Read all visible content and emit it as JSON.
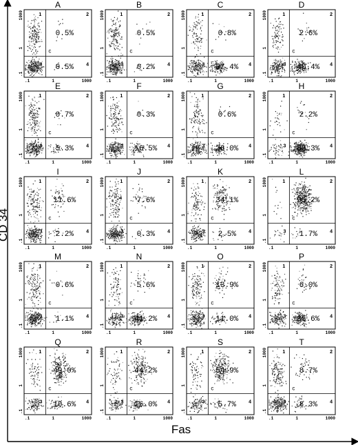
{
  "chart_data": {
    "type": "scatter",
    "layout": "5x4 grid of flow-cytometry dot plots",
    "xlabel": "Fas",
    "ylabel": "CD 34",
    "x_tick_labels": [
      ".1",
      "1",
      "1000"
    ],
    "y_tick_labels": [
      ".1",
      "1",
      "1000"
    ],
    "quadrant_labels": [
      "1",
      "2",
      "3",
      "4"
    ],
    "gate_label": "c",
    "x_scale": "log",
    "y_scale": "log",
    "panels": [
      {
        "letter": "A",
        "upper_right": "0.5%",
        "lower_right": "0.5%",
        "q2": 0.5,
        "q4": 0.5
      },
      {
        "letter": "B",
        "upper_right": "0.5%",
        "lower_right": "0.2%",
        "q2": 0.5,
        "q4": 0.2
      },
      {
        "letter": "C",
        "upper_right": "0.8%",
        "lower_right": "37.4%",
        "q2": 0.8,
        "q4": 37.4
      },
      {
        "letter": "D",
        "upper_right": "2.6%",
        "lower_right": "40.4%",
        "q2": 2.6,
        "q4": 40.4
      },
      {
        "letter": "E",
        "upper_right": "0.7%",
        "lower_right": "5.3%",
        "q2": 0.7,
        "q4": 5.3
      },
      {
        "letter": "F",
        "upper_right": "0.3%",
        "lower_right": "16.5%",
        "q2": 0.3,
        "q4": 16.5
      },
      {
        "letter": "G",
        "upper_right": "0.6%",
        "lower_right": "26.0%",
        "q2": 0.6,
        "q4": 26.0
      },
      {
        "letter": "H",
        "upper_right": "2.2%",
        "lower_right": "83.3%",
        "q2": 2.2,
        "q4": 83.3
      },
      {
        "letter": "I",
        "upper_right": "11.6%",
        "lower_right": "2.2%",
        "q2": 11.6,
        "q4": 2.2
      },
      {
        "letter": "J",
        "upper_right": "7.6%",
        "lower_right": "0.3%",
        "q2": 7.6,
        "q4": 0.3
      },
      {
        "letter": "K",
        "upper_right": "34.1%",
        "lower_right": "2.5%",
        "q2": 34.1,
        "q4": 2.5
      },
      {
        "letter": "L",
        "upper_right": "95.2%",
        "lower_right": "1.7%",
        "q2": 95.2,
        "q4": 1.7
      },
      {
        "letter": "M",
        "upper_right": "0.6%",
        "lower_right": "1.1%",
        "q2": 0.6,
        "q4": 1.1
      },
      {
        "letter": "N",
        "upper_right": "5.6%",
        "lower_right": "41.2%",
        "q2": 5.6,
        "q4": 41.2
      },
      {
        "letter": "O",
        "upper_right": "13.9%",
        "lower_right": "11.0%",
        "q2": 13.9,
        "q4": 11.0
      },
      {
        "letter": "P",
        "upper_right": "6.0%",
        "lower_right": "35.6%",
        "q2": 6.0,
        "q4": 35.6
      },
      {
        "letter": "Q",
        "upper_right": "49.0%",
        "lower_right": "10.6%",
        "q2": 49.0,
        "q4": 10.6
      },
      {
        "letter": "R",
        "upper_right": "44.2%",
        "lower_right": "16.0%",
        "q2": 44.2,
        "q4": 16.0
      },
      {
        "letter": "S",
        "upper_right": "54.9%",
        "lower_right": "5.7%",
        "q2": 54.9,
        "q4": 5.7
      },
      {
        "letter": "T",
        "upper_right": "8.7%",
        "lower_right": "8.3%",
        "q2": 8.7,
        "q4": 8.3
      }
    ]
  }
}
